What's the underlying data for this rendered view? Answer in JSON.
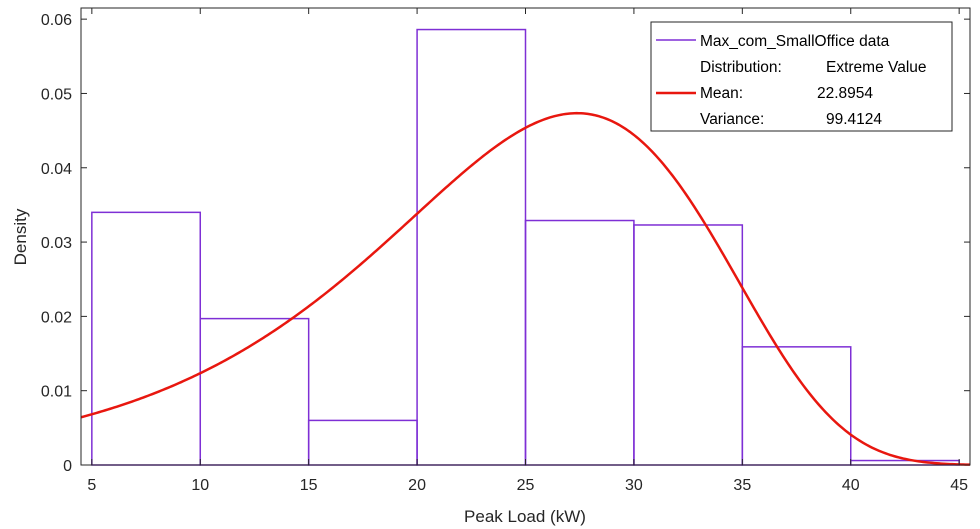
{
  "chart_data": {
    "type": "bar",
    "title": "",
    "xlabel": "Peak Load (kW)",
    "ylabel": "Density",
    "xlim": [
      4.5,
      45.5
    ],
    "ylim": [
      0,
      0.0615
    ],
    "xticks": [
      5,
      10,
      15,
      20,
      25,
      30,
      35,
      40,
      45
    ],
    "yticks": [
      0,
      0.01,
      0.02,
      0.03,
      0.04,
      0.05,
      0.06
    ],
    "ytick_labels": [
      "0",
      "0.01",
      "0.02",
      "0.03",
      "0.04",
      "0.05",
      "0.06"
    ],
    "grid": false,
    "histogram": {
      "name": "Max_com_SmallOffice data",
      "color": "#7E2FD5",
      "bin_edges": [
        5,
        10,
        15,
        20,
        25,
        30,
        35,
        40,
        45
      ],
      "values": [
        0.034,
        0.0197,
        0.006,
        0.0586,
        0.0329,
        0.0323,
        0.0159,
        0.0006
      ]
    },
    "fit_curve": {
      "color": "#E8170F",
      "distribution": "Extreme Value",
      "location": 27.38,
      "scale": 7.77
    },
    "legend": {
      "placement": "top-right",
      "entries": [
        {
          "label": "Max_com_SmallOffice data",
          "value": ""
        },
        {
          "label": "Distribution:",
          "value": "Extreme Value"
        },
        {
          "label": "Mean:",
          "value": "22.8954"
        },
        {
          "label": "Variance:",
          "value": "99.4124"
        }
      ]
    }
  }
}
